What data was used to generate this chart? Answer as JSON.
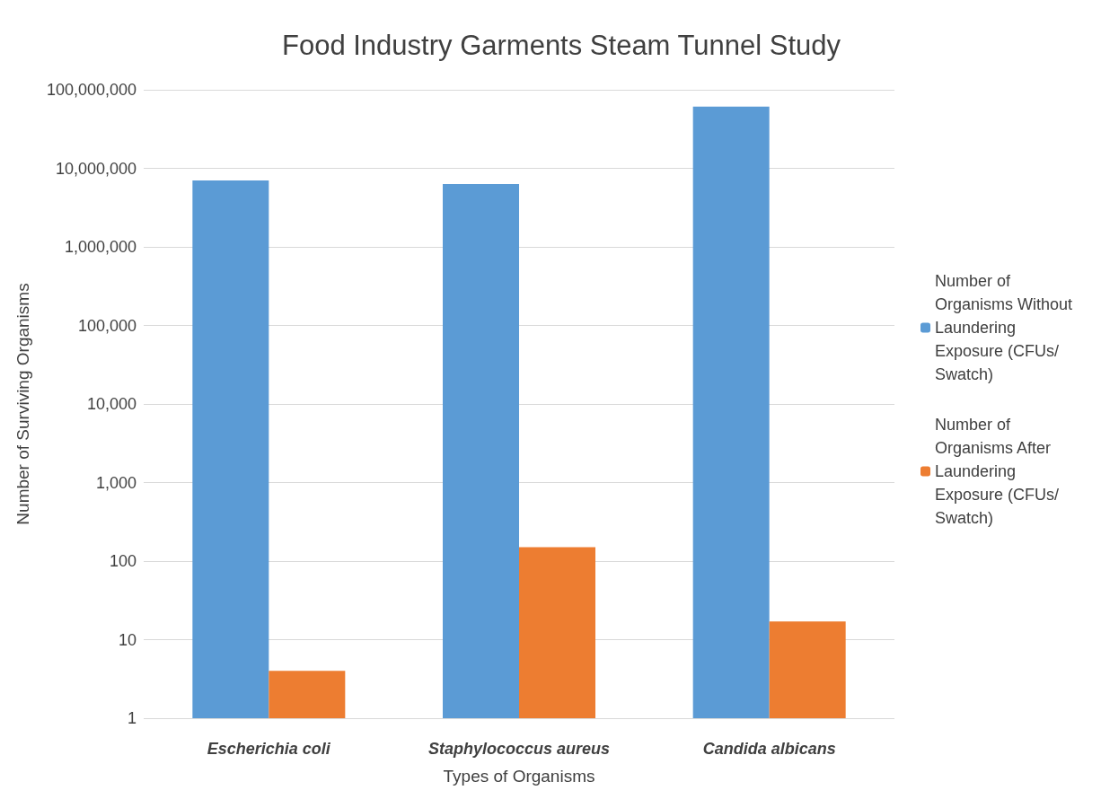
{
  "chart_data": {
    "type": "bar",
    "title": "Food Industry Garments Steam Tunnel Study",
    "xlabel": "Types of Organisms",
    "ylabel": "Number of Surviving Organisms",
    "categories": [
      "Escherichia coli",
      "Staphylococcus aureus",
      "Candida albicans"
    ],
    "series": [
      {
        "name": "Number of Organisms Without Laundering Exposure (CFUs/Swatch)",
        "color": "#5b9bd5",
        "values": [
          7000000,
          6300000,
          61000000
        ]
      },
      {
        "name": "Number of Organisms After Laundering Exposure (CFUs/Swatch)",
        "color": "#ed7d31",
        "values": [
          4,
          150,
          17
        ]
      }
    ],
    "log": "y",
    "ylim": [
      1,
      100000000
    ],
    "yticks": [
      1,
      10,
      100,
      {
        "value": 1000,
        "label": "1,000"
      },
      {
        "value": 10000,
        "label": "10,000"
      },
      {
        "value": 100000,
        "label": "100,000"
      },
      {
        "value": 1000000,
        "label": "1,000,000"
      },
      {
        "value": 10000000,
        "label": "10,000,000"
      },
      {
        "value": 100000000,
        "label": "100,000,000"
      }
    ],
    "grid": "y",
    "legend": "right"
  }
}
